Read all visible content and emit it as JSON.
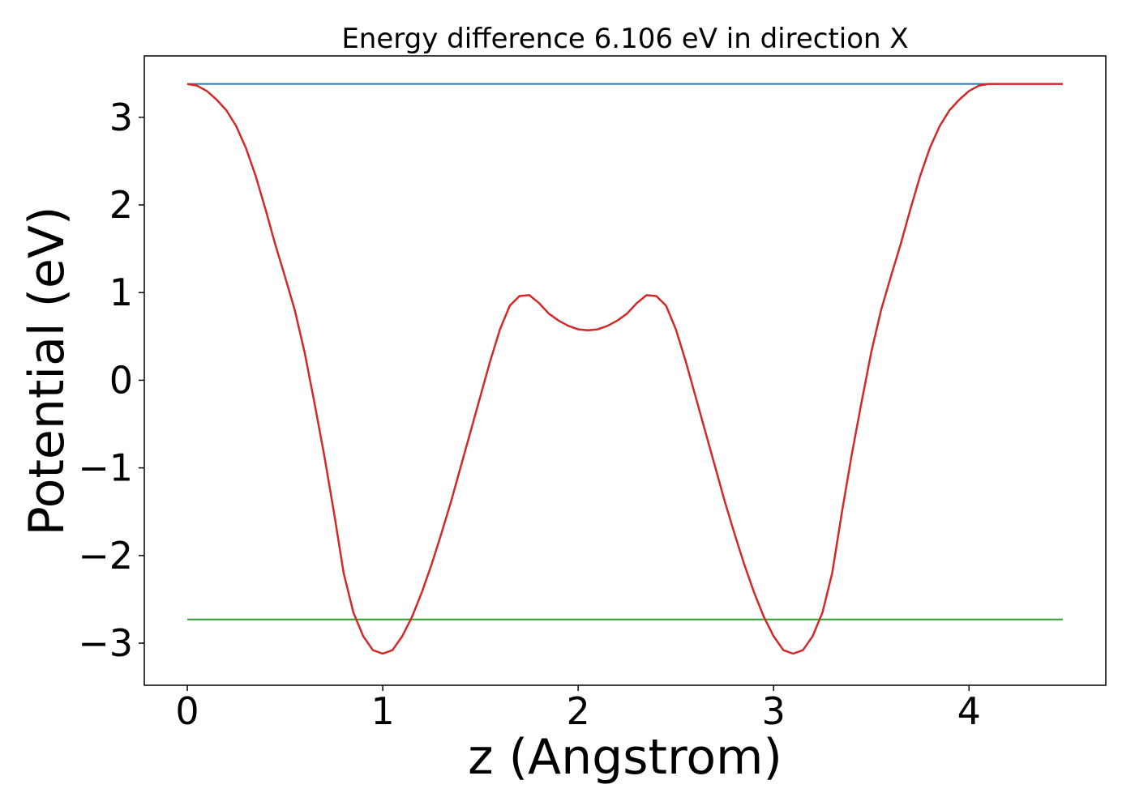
{
  "chart_data": {
    "type": "line",
    "title": "Energy difference 6.106 eV in direction X",
    "xlabel": "z (Angstrom)",
    "ylabel": "Potential (eV)",
    "xlim": [
      -0.22,
      4.7
    ],
    "ylim": [
      -3.48,
      3.7
    ],
    "xticks": [
      0,
      1,
      2,
      3,
      4
    ],
    "xtick_labels": [
      "0",
      "1",
      "2",
      "3",
      "4"
    ],
    "yticks": [
      3,
      2,
      1,
      0,
      -1,
      -2,
      -3
    ],
    "ytick_labels": [
      "3",
      "2",
      "1",
      "0",
      "−1",
      "−2",
      "−3"
    ],
    "grid": false,
    "series": [
      {
        "color": "#1f77b4",
        "x": [
          0,
          4.48
        ],
        "y": [
          3.38,
          3.38
        ]
      },
      {
        "color": "#2ca02c",
        "x": [
          0,
          4.48
        ],
        "y": [
          -2.73,
          -2.73
        ]
      },
      {
        "color": "#d62728",
        "x": [
          0,
          0.05,
          0.1,
          0.15,
          0.2,
          0.25,
          0.3,
          0.35,
          0.4,
          0.45,
          0.5,
          0.55,
          0.6,
          0.65,
          0.7,
          0.75,
          0.8,
          0.85,
          0.9,
          0.95,
          1.0,
          1.05,
          1.1,
          1.15,
          1.2,
          1.25,
          1.3,
          1.35,
          1.4,
          1.45,
          1.5,
          1.55,
          1.6,
          1.65,
          1.7,
          1.75,
          1.8,
          1.85,
          1.9,
          1.95,
          2.0,
          2.05,
          2.1,
          2.15,
          2.2,
          2.25,
          2.3,
          2.35,
          2.4,
          2.45,
          2.5,
          2.55,
          2.6,
          2.65,
          2.7,
          2.75,
          2.8,
          2.85,
          2.9,
          2.95,
          3.0,
          3.05,
          3.1,
          3.15,
          3.2,
          3.25,
          3.3,
          3.35,
          3.4,
          3.45,
          3.5,
          3.55,
          3.6,
          3.65,
          3.7,
          3.75,
          3.8,
          3.85,
          3.9,
          3.95,
          4.0,
          4.05,
          4.1,
          4.15,
          4.2,
          4.25,
          4.3,
          4.35,
          4.4,
          4.45,
          4.48
        ],
        "y": [
          3.38,
          3.36,
          3.3,
          3.2,
          3.08,
          2.9,
          2.65,
          2.33,
          1.95,
          1.55,
          1.18,
          0.8,
          0.32,
          -0.25,
          -0.85,
          -1.5,
          -2.2,
          -2.65,
          -2.92,
          -3.08,
          -3.12,
          -3.08,
          -2.92,
          -2.7,
          -2.42,
          -2.1,
          -1.75,
          -1.38,
          -0.98,
          -0.58,
          -0.18,
          0.22,
          0.58,
          0.85,
          0.96,
          0.97,
          0.88,
          0.76,
          0.68,
          0.62,
          0.58,
          0.57,
          0.58,
          0.62,
          0.68,
          0.76,
          0.88,
          0.97,
          0.96,
          0.85,
          0.58,
          0.22,
          -0.18,
          -0.58,
          -0.98,
          -1.38,
          -1.75,
          -2.1,
          -2.42,
          -2.7,
          -2.92,
          -3.08,
          -3.12,
          -3.08,
          -2.92,
          -2.65,
          -2.2,
          -1.5,
          -0.85,
          -0.25,
          0.32,
          0.8,
          1.18,
          1.55,
          1.95,
          2.33,
          2.65,
          2.9,
          3.08,
          3.2,
          3.3,
          3.36,
          3.38,
          3.38,
          3.38,
          3.38,
          3.38,
          3.38,
          3.38,
          3.38,
          3.38
        ]
      }
    ]
  }
}
